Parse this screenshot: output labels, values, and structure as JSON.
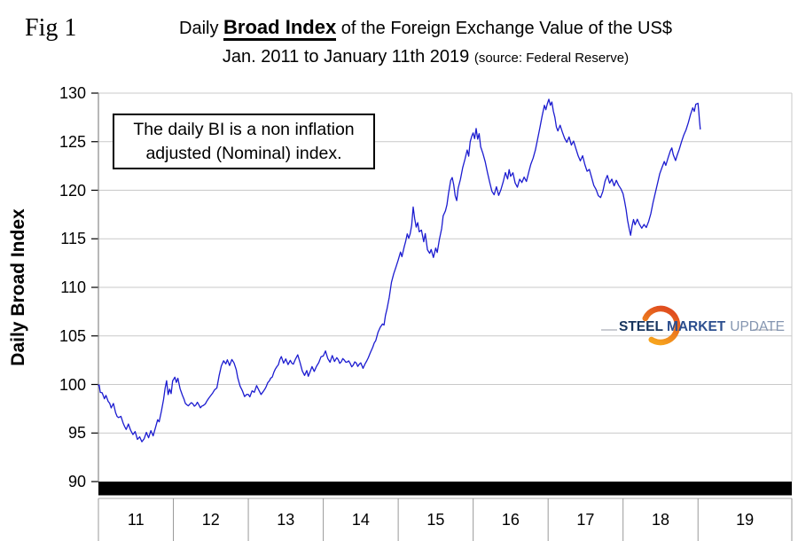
{
  "figure_label": "Fig 1",
  "title": {
    "prefix": "Daily ",
    "emphasis": "Broad Index",
    "suffix": " of the Foreign Exchange Value of the US$",
    "line2": "Jan. 2011 to January 11th 2019",
    "source": "(source: Federal Reserve)"
  },
  "annotation": {
    "line1": "The daily BI is a non inflation",
    "line2": "adjusted (Nominal) index."
  },
  "logo": {
    "word1": "STEEL",
    "word2": "MARKET",
    "word3": "UPDATE",
    "word1_color": "#17355e",
    "word2_color": "#2c4f8f",
    "word3_color": "#8495b0",
    "swoosh_color_top": "#f6a21d",
    "swoosh_color_bottom": "#e04e1f"
  },
  "colors": {
    "line": "#1c1cd0",
    "gridline": "#c9c9c9",
    "axis": "#888888",
    "tick": "#000000",
    "bottom_band": "#000000"
  },
  "chart_data": {
    "type": "line",
    "title": "Daily Broad Index of the Foreign Exchange Value of the US$",
    "subtitle": "Jan. 2011 to January 11th 2019 (source: Federal Reserve)",
    "ylabel": "Daily Broad Index",
    "xlabel": "",
    "ylim": [
      90,
      130
    ],
    "y_ticks": [
      90,
      95,
      100,
      105,
      110,
      115,
      120,
      125,
      130
    ],
    "x_tick_labels": [
      "11",
      "12",
      "13",
      "14",
      "15",
      "16",
      "17",
      "18",
      "19"
    ],
    "grid": "horizontal",
    "legend_position": "none",
    "series_name": "Daily Broad Index (nominal)",
    "x_years": [
      2011.0,
      2011.01,
      2011.025,
      2011.05,
      2011.08,
      2011.1,
      2011.13,
      2011.17,
      2011.2,
      2011.23,
      2011.27,
      2011.3,
      2011.33,
      2011.37,
      2011.4,
      2011.43,
      2011.46,
      2011.49,
      2011.52,
      2011.55,
      2011.58,
      2011.61,
      2011.64,
      2011.67,
      2011.7,
      2011.73,
      2011.76,
      2011.79,
      2011.81,
      2011.84,
      2011.87,
      2011.89,
      2011.91,
      2011.93,
      2011.95,
      2011.97,
      2011.99,
      2012.02,
      2012.04,
      2012.06,
      2012.09,
      2012.12,
      2012.16,
      2012.2,
      2012.24,
      2012.28,
      2012.32,
      2012.36,
      2012.4,
      2012.45,
      2012.5,
      2012.55,
      2012.58,
      2012.61,
      2012.64,
      2012.67,
      2012.7,
      2012.72,
      2012.75,
      2012.78,
      2012.81,
      2012.84,
      2012.86,
      2012.89,
      2012.92,
      2012.95,
      2012.98,
      2013.02,
      2013.05,
      2013.08,
      2013.11,
      2013.14,
      2013.17,
      2013.2,
      2013.24,
      2013.28,
      2013.32,
      2013.36,
      2013.4,
      2013.44,
      2013.47,
      2013.5,
      2013.53,
      2013.56,
      2013.6,
      2013.63,
      2013.66,
      2013.69,
      2013.72,
      2013.75,
      2013.78,
      2013.8,
      2013.83,
      2013.85,
      2013.88,
      2013.91,
      2013.94,
      2013.97,
      2014.0,
      2014.03,
      2014.06,
      2014.09,
      2014.12,
      2014.15,
      2014.18,
      2014.22,
      2014.26,
      2014.3,
      2014.34,
      2014.38,
      2014.42,
      2014.46,
      2014.5,
      2014.53,
      2014.56,
      2014.6,
      2014.63,
      2014.66,
      2014.7,
      2014.73,
      2014.76,
      2014.79,
      2014.81,
      2014.83,
      2014.85,
      2014.88,
      2014.91,
      2014.94,
      2014.97,
      2015.0,
      2015.03,
      2015.05,
      2015.08,
      2015.1,
      2015.12,
      2015.14,
      2015.16,
      2015.18,
      2015.2,
      2015.22,
      2015.24,
      2015.26,
      2015.28,
      2015.31,
      2015.34,
      2015.36,
      2015.39,
      2015.42,
      2015.44,
      2015.47,
      2015.5,
      2015.52,
      2015.55,
      2015.58,
      2015.6,
      2015.63,
      2015.65,
      2015.67,
      2015.7,
      2015.72,
      2015.74,
      2015.76,
      2015.78,
      2015.8,
      2015.83,
      2015.86,
      2015.89,
      2015.92,
      2015.94,
      2015.96,
      2015.98,
      2016.0,
      2016.02,
      2016.04,
      2016.06,
      2016.08,
      2016.1,
      2016.13,
      2016.16,
      2016.19,
      2016.22,
      2016.25,
      2016.28,
      2016.31,
      2016.34,
      2016.37,
      2016.4,
      2016.43,
      2016.46,
      2016.48,
      2016.5,
      2016.53,
      2016.56,
      2016.59,
      2016.62,
      2016.65,
      2016.68,
      2016.71,
      2016.74,
      2016.77,
      2016.8,
      2016.83,
      2016.86,
      2016.89,
      2016.92,
      2016.95,
      2016.97,
      2016.99,
      2017.01,
      2017.03,
      2017.05,
      2017.07,
      2017.09,
      2017.11,
      2017.13,
      2017.16,
      2017.19,
      2017.22,
      2017.25,
      2017.28,
      2017.31,
      2017.34,
      2017.37,
      2017.4,
      2017.43,
      2017.46,
      2017.49,
      2017.52,
      2017.55,
      2017.58,
      2017.61,
      2017.64,
      2017.67,
      2017.7,
      2017.73,
      2017.76,
      2017.79,
      2017.82,
      2017.85,
      2017.88,
      2017.91,
      2017.94,
      2017.97,
      2018.0,
      2018.02,
      2018.04,
      2018.06,
      2018.08,
      2018.1,
      2018.12,
      2018.14,
      2018.16,
      2018.19,
      2018.22,
      2018.25,
      2018.28,
      2018.31,
      2018.34,
      2018.37,
      2018.4,
      2018.43,
      2018.46,
      2018.49,
      2018.52,
      2018.55,
      2018.57,
      2018.6,
      2018.63,
      2018.65,
      2018.67,
      2018.7,
      2018.72,
      2018.75,
      2018.78,
      2018.81,
      2018.84,
      2018.87,
      2018.9,
      2018.93,
      2018.95,
      2018.97,
      2019.0,
      2019.01,
      2019.02,
      2019.03
    ],
    "values": [
      99.9,
      100.0,
      99.2,
      99.0,
      98.4,
      98.8,
      98.1,
      97.6,
      97.9,
      97.1,
      96.5,
      96.8,
      96.1,
      95.6,
      96.0,
      95.2,
      94.7,
      95.0,
      94.4,
      94.6,
      94.1,
      94.5,
      95.0,
      94.6,
      95.2,
      94.8,
      95.7,
      96.4,
      96.1,
      97.1,
      98.3,
      99.4,
      100.2,
      99.0,
      99.6,
      99.2,
      100.4,
      100.8,
      100.3,
      100.6,
      99.6,
      98.8,
      98.1,
      97.8,
      98.2,
      97.7,
      98.1,
      97.6,
      97.9,
      98.4,
      98.9,
      99.5,
      99.8,
      100.9,
      102.0,
      102.6,
      102.1,
      102.5,
      101.9,
      102.4,
      102.2,
      101.5,
      100.7,
      99.8,
      99.3,
      98.8,
      99.1,
      98.9,
      99.5,
      99.2,
      99.8,
      99.4,
      99.0,
      99.3,
      99.9,
      100.4,
      100.9,
      101.5,
      102.1,
      102.9,
      102.3,
      102.7,
      102.0,
      102.5,
      102.2,
      102.8,
      103.0,
      102.3,
      101.4,
      100.9,
      101.3,
      100.7,
      101.2,
      101.8,
      101.4,
      101.9,
      102.3,
      102.8,
      102.9,
      103.3,
      102.5,
      102.2,
      102.8,
      102.3,
      102.7,
      102.1,
      102.6,
      102.1,
      102.5,
      102.0,
      102.4,
      101.9,
      102.3,
      101.8,
      102.2,
      102.6,
      103.1,
      103.8,
      104.6,
      105.3,
      105.9,
      106.3,
      106.1,
      107.2,
      107.7,
      109.0,
      110.6,
      111.4,
      112.1,
      112.8,
      113.5,
      113.1,
      114.0,
      114.8,
      115.5,
      115.0,
      115.6,
      116.4,
      118.2,
      117.0,
      116.3,
      116.6,
      115.7,
      115.9,
      114.6,
      115.4,
      113.9,
      113.4,
      113.9,
      113.2,
      114.2,
      113.8,
      115.0,
      116.0,
      117.3,
      118.0,
      118.6,
      119.6,
      121.0,
      121.4,
      120.7,
      119.6,
      119.0,
      120.2,
      121.2,
      122.3,
      123.3,
      124.1,
      123.6,
      124.9,
      125.6,
      126.0,
      125.5,
      126.4,
      125.3,
      125.8,
      124.6,
      124.0,
      123.2,
      122.1,
      121.0,
      120.1,
      119.5,
      120.4,
      119.6,
      120.2,
      121.0,
      121.9,
      121.2,
      122.0,
      121.3,
      121.7,
      120.8,
      120.4,
      121.1,
      120.7,
      121.3,
      121.0,
      121.8,
      122.6,
      123.4,
      124.3,
      125.4,
      126.6,
      127.8,
      128.8,
      128.3,
      128.8,
      129.3,
      128.6,
      129.0,
      128.2,
      127.5,
      126.5,
      126.1,
      126.6,
      125.8,
      125.2,
      124.8,
      125.3,
      124.6,
      124.9,
      124.2,
      123.4,
      122.8,
      123.3,
      122.4,
      121.8,
      122.2,
      121.3,
      120.6,
      120.1,
      119.6,
      119.2,
      120.0,
      120.9,
      121.4,
      120.8,
      121.2,
      120.6,
      121.1,
      120.7,
      120.3,
      119.8,
      119.0,
      118.0,
      116.8,
      115.9,
      115.3,
      116.2,
      116.9,
      116.4,
      117.1,
      116.5,
      116.1,
      116.6,
      116.3,
      117.0,
      117.8,
      118.9,
      119.9,
      120.8,
      121.6,
      122.3,
      122.9,
      122.4,
      123.1,
      123.8,
      124.2,
      123.5,
      123.1,
      123.7,
      124.3,
      124.9,
      125.6,
      126.3,
      127.1,
      127.8,
      128.4,
      128.0,
      128.7,
      128.9,
      128.2,
      127.3,
      126.3
    ]
  }
}
